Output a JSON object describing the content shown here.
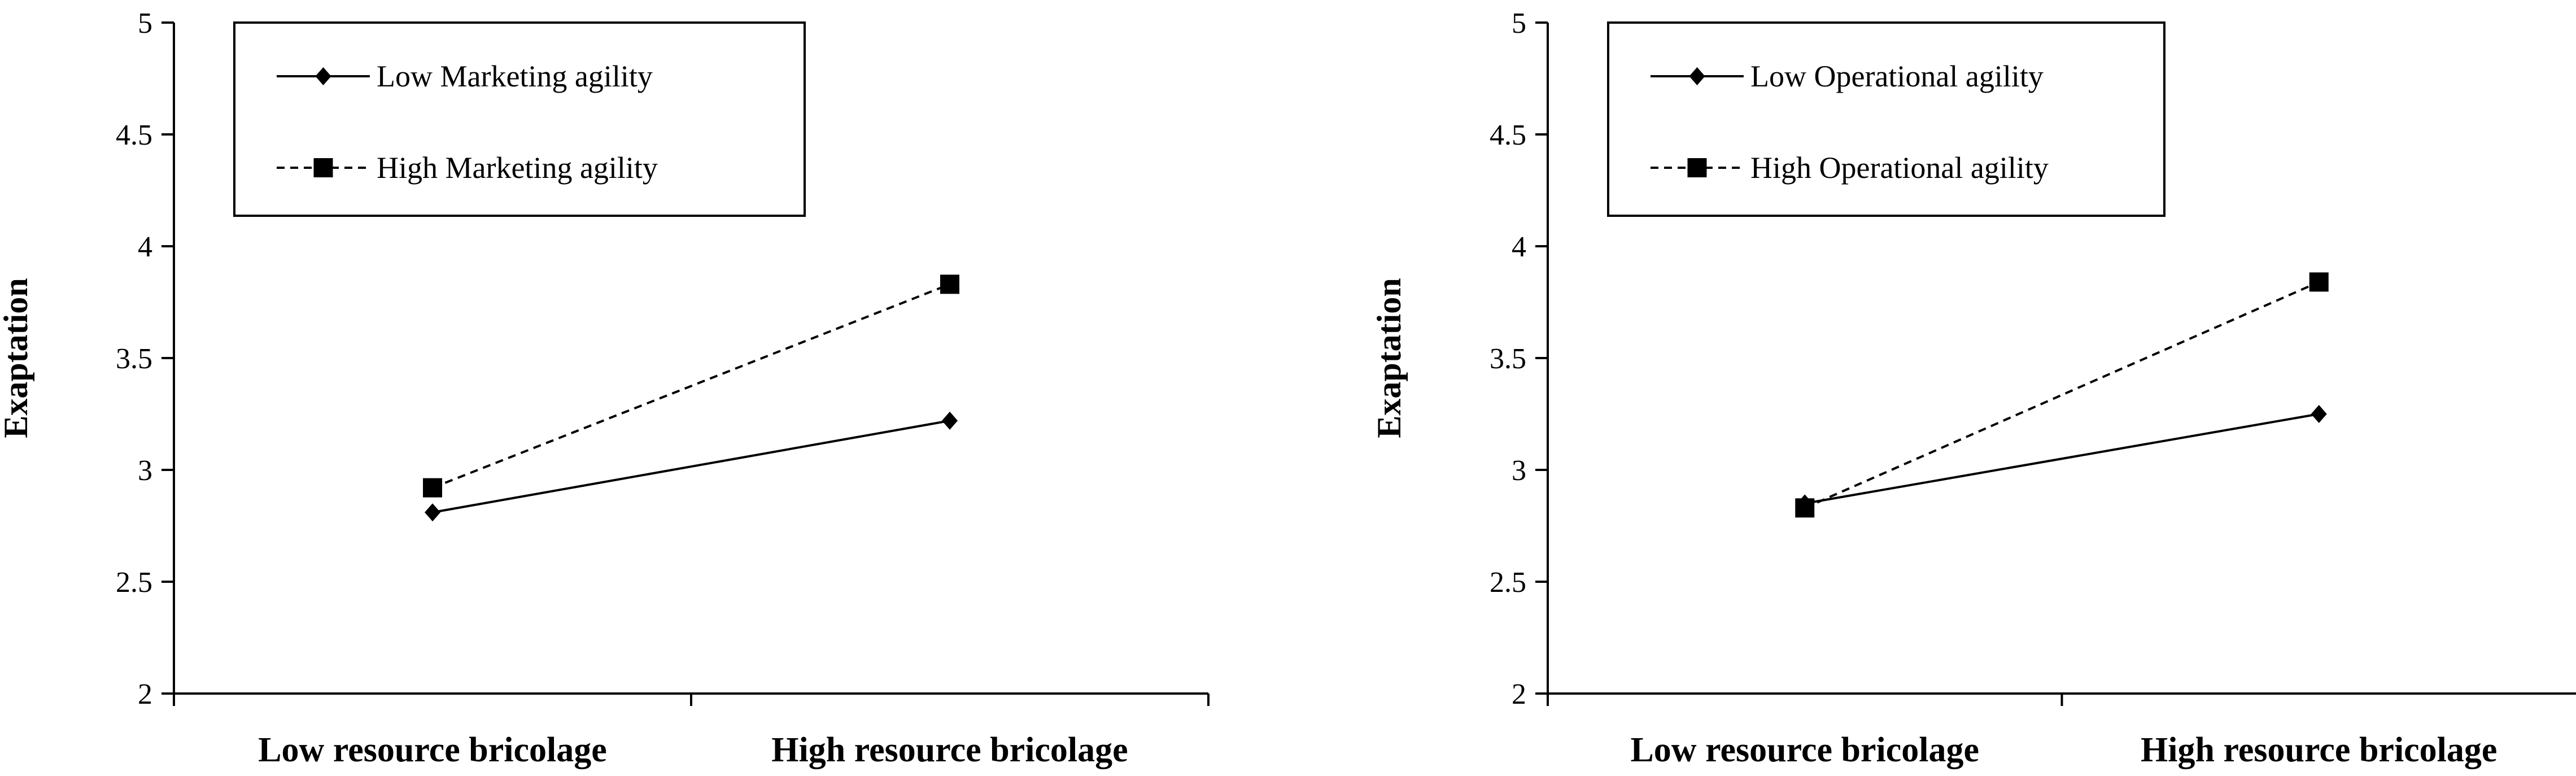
{
  "chart_data": [
    {
      "type": "line",
      "ylabel": "Exaptation",
      "xlabel": "",
      "categories": [
        "Low resource bricolage",
        "High resource bricolage"
      ],
      "ylim": [
        2,
        5
      ],
      "yticks": [
        "2",
        "2.5",
        "3",
        "3.5",
        "4",
        "4.5",
        "5"
      ],
      "legend_position": "top-left",
      "grid": false,
      "series": [
        {
          "name": "Low Marketing agility",
          "values": [
            2.81,
            3.22
          ],
          "style": "solid",
          "marker": "diamond",
          "color": "#000000"
        },
        {
          "name": "High Marketing agility",
          "values": [
            2.92,
            3.83
          ],
          "style": "dashed",
          "marker": "square",
          "color": "#000000"
        }
      ]
    },
    {
      "type": "line",
      "ylabel": "Exaptation",
      "xlabel": "",
      "categories": [
        "Low resource bricolage",
        "High resource bricolage"
      ],
      "ylim": [
        2,
        5
      ],
      "yticks": [
        "2",
        "2.5",
        "3",
        "3.5",
        "4",
        "4.5",
        "5"
      ],
      "legend_position": "top-left",
      "grid": false,
      "series": [
        {
          "name": "Low Operational agility",
          "values": [
            2.85,
            3.25
          ],
          "style": "solid",
          "marker": "diamond",
          "color": "#000000"
        },
        {
          "name": "High Operational agility",
          "values": [
            2.83,
            3.84
          ],
          "style": "dashed",
          "marker": "square",
          "color": "#000000"
        }
      ]
    }
  ]
}
